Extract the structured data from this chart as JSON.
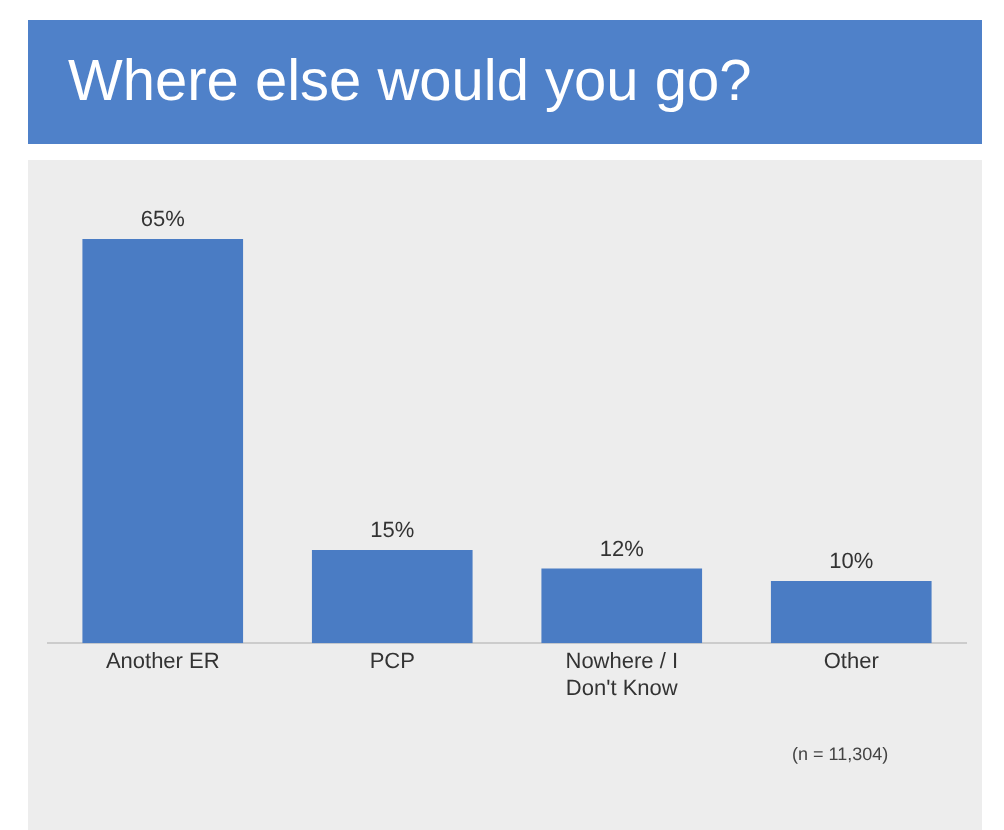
{
  "chart_data": {
    "type": "bar",
    "title": "Where else would you go?",
    "categories": [
      "Another ER",
      "PCP",
      "Nowhere / I Don't Know",
      "Other"
    ],
    "values": [
      65,
      15,
      12,
      10
    ],
    "value_labels": [
      "65%",
      "15%",
      "12%",
      "10%"
    ],
    "color": "#4a7cc4",
    "tick_labels": "x",
    "annotations": [
      "(n = 11,304)"
    ]
  }
}
